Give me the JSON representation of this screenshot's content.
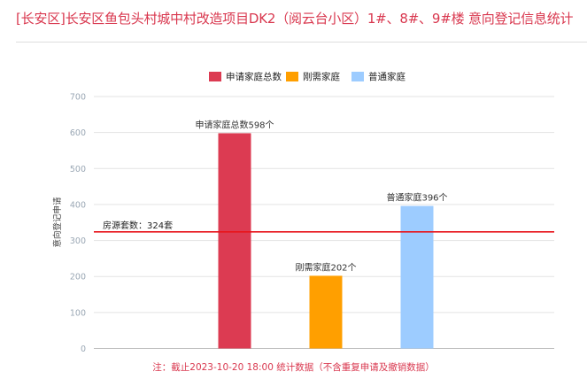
{
  "title": "[长安区]长安区鱼包头村城中村改造项目DK2（阅云台小区）1#、8#、9#楼 意向登记信息统计",
  "footnote": "注：截止2023-10-20 18:00 统计数据（不含重复申请及撤销数据）",
  "chart_data": {
    "type": "bar",
    "ylabel": "意向登记申请",
    "xlabel": "",
    "ylim": [
      0,
      700
    ],
    "yticks": [
      0,
      100,
      200,
      300,
      400,
      500,
      600,
      700
    ],
    "grid": true,
    "legend_position": "top-center",
    "series": [
      {
        "name": "申请家庭总数",
        "value": 598,
        "label": "申请家庭总数598个",
        "color": "#dc3b52"
      },
      {
        "name": "刚需家庭",
        "value": 202,
        "label": "刚需家庭202个",
        "color": "#ff9f00"
      },
      {
        "name": "普通家庭",
        "value": 396,
        "label": "普通家庭396个",
        "color": "#9dccff"
      }
    ],
    "reference_line": {
      "value": 324,
      "label": "房源套数：324套",
      "color": "#e8141b"
    }
  }
}
